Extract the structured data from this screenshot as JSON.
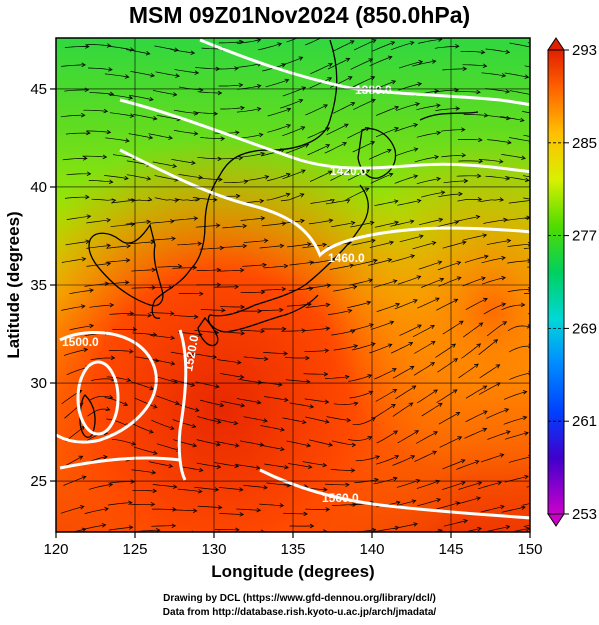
{
  "title": "MSM 09Z01Nov2024 (850.0hPa)",
  "axes": {
    "xlabel": "Longitude (degrees)",
    "ylabel": "Latitude  (degrees)",
    "x_ticks": [
      120,
      125,
      130,
      135,
      140,
      145,
      150
    ],
    "y_ticks": [
      25,
      30,
      35,
      40,
      45
    ],
    "xlim": [
      120,
      150
    ],
    "ylim": [
      22.4,
      47.6
    ]
  },
  "colorbar": {
    "min": 253,
    "max": 293,
    "tick_labels": [
      "293",
      "285",
      "277",
      "269",
      "261",
      "253"
    ],
    "tick_values": [
      293,
      285,
      277,
      269,
      261,
      253
    ],
    "colors": [
      "#cc00cc",
      "#0000cc",
      "#0090ff",
      "#00e0e0",
      "#00d050",
      "#80e000",
      "#e8f000",
      "#ffb000",
      "#ff5000",
      "#e02000"
    ]
  },
  "contours": [
    {
      "label": "1380.0"
    },
    {
      "label": "1420.0"
    },
    {
      "label": "1460.0"
    },
    {
      "label": "1500.0"
    },
    {
      "label": "1520.0"
    },
    {
      "label": "1560.0"
    }
  ],
  "credits": {
    "line1": "Drawing by DCL (https://www.gfd-dennou.org/library/dcl/)",
    "line2": "Data from http://database.rish.kyoto-u.ac.jp/arch/jmadata/"
  }
}
